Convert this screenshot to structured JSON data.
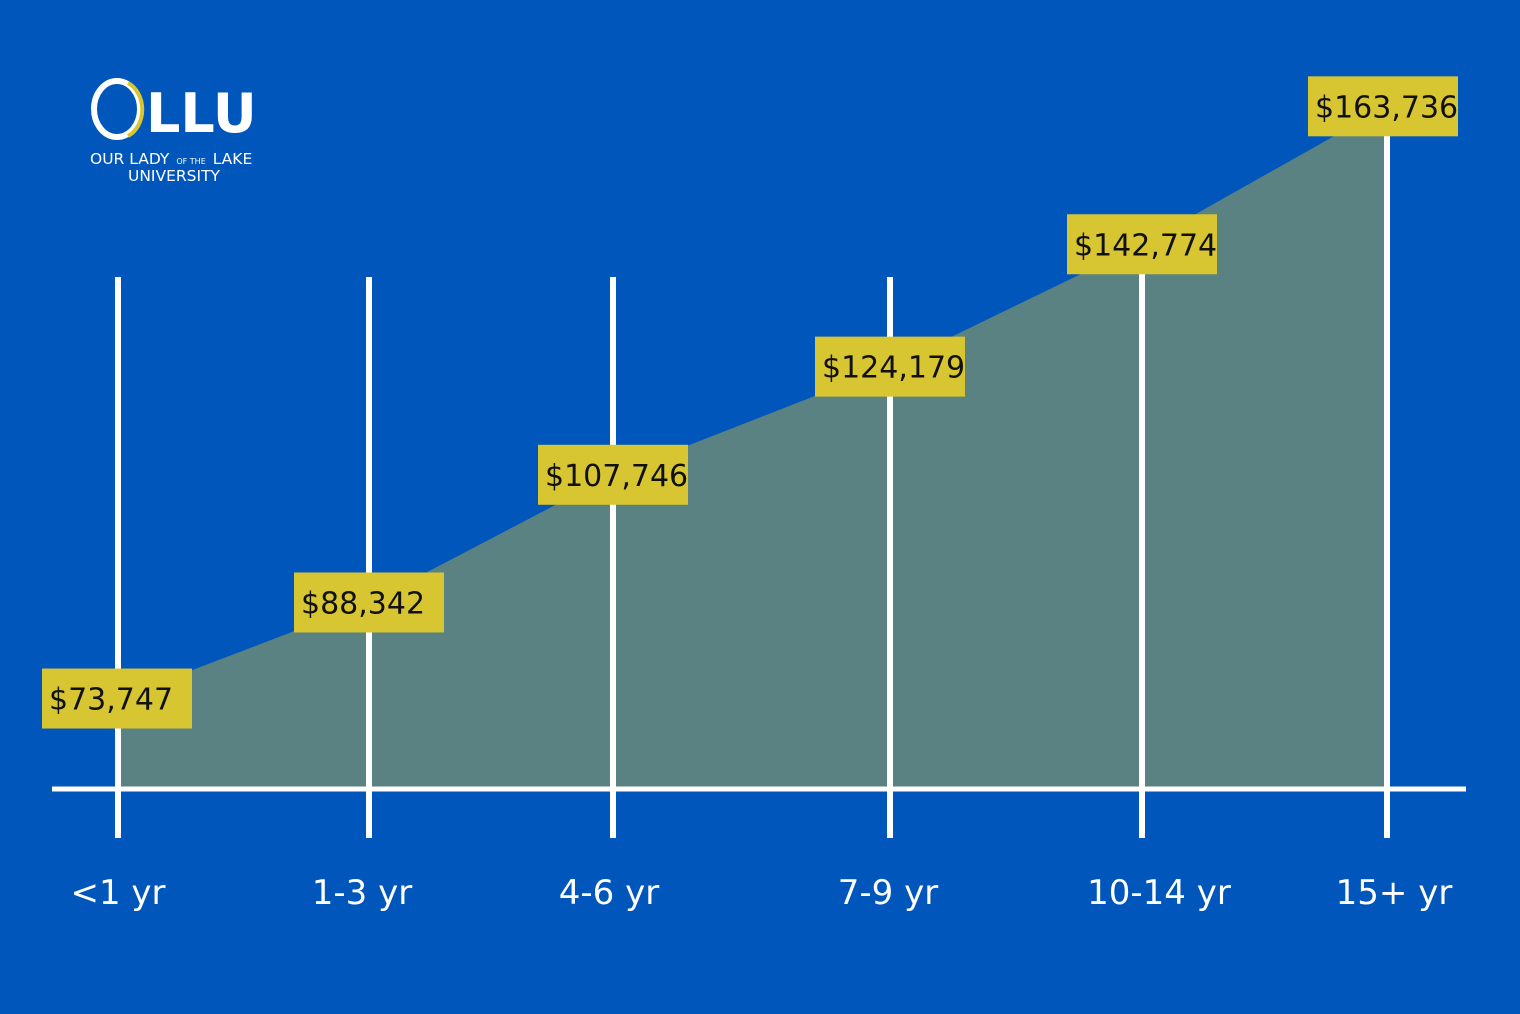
{
  "logo": {
    "letters": "LLU",
    "line1_a": "OUR LADY",
    "line1_b": "OF THE",
    "line1_c": "LAKE",
    "line2": "UNIVERSITY"
  },
  "colors": {
    "background": "#0056BA",
    "area_fill": "#5A8282",
    "label_box": "#D7C532",
    "line": "#FFFFFF",
    "label_text": "#111111",
    "logo_gold": "#D7C532"
  },
  "chart_data": {
    "type": "area",
    "categories": [
      "<1 yr",
      "1-3 yr",
      "4-6 yr",
      "7-9 yr",
      "10-14 yr",
      "15+ yr"
    ],
    "values": [
      73747,
      88342,
      107746,
      124179,
      142774,
      163736
    ],
    "data_labels": [
      "$73,747",
      "$88,342",
      "$107,746",
      "$124,179",
      "$142,774",
      "$163,736"
    ],
    "ylim": [
      60000,
      165000
    ],
    "grid": "vertical",
    "legend": "none"
  }
}
